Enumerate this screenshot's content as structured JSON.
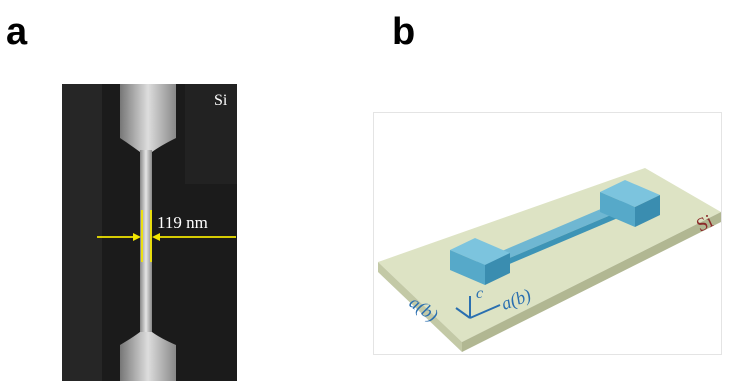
{
  "panels": [
    {
      "label": "a",
      "material": "Si",
      "width_annotation": "119 nm"
    },
    {
      "label": "b",
      "material": "Si",
      "axes": [
        "a(b)",
        "c",
        "a(b)"
      ]
    }
  ]
}
